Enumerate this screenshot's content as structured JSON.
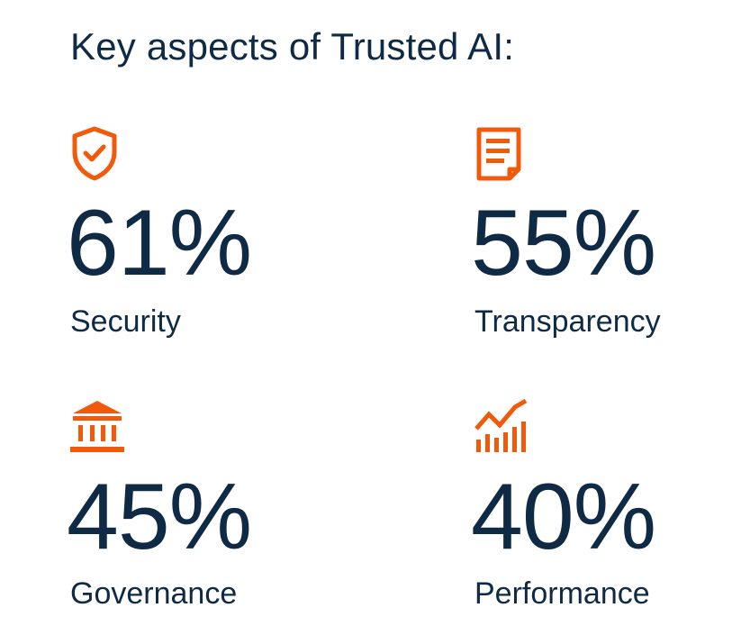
{
  "title": "Key aspects of Trusted AI:",
  "accent_color": "#f15a0b",
  "text_color": "#0f2a44",
  "stats": [
    {
      "icon": "shield-check-icon",
      "value": "61%",
      "label": "Security"
    },
    {
      "icon": "document-icon",
      "value": "55%",
      "label": "Transparency"
    },
    {
      "icon": "institution-building-icon",
      "value": "45%",
      "label": "Governance"
    },
    {
      "icon": "growth-chart-icon",
      "value": "40%",
      "label": "Performance"
    }
  ]
}
